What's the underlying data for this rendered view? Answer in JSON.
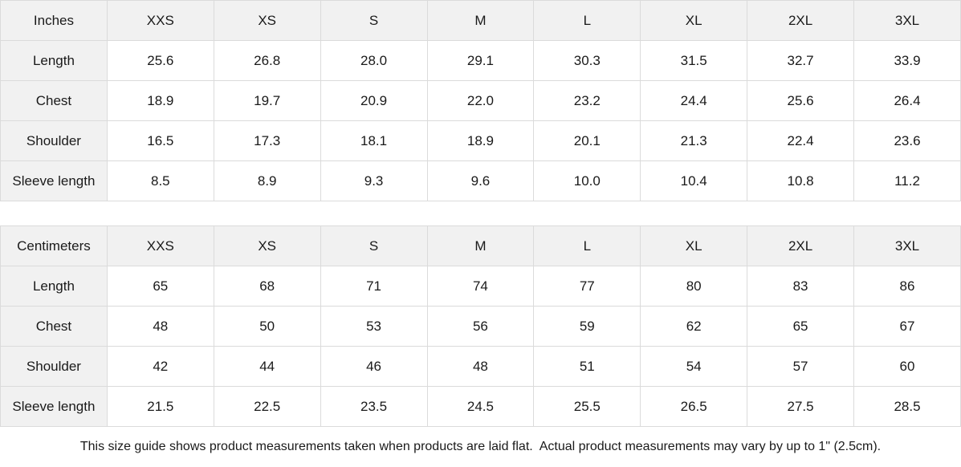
{
  "inches_table": {
    "unit_label": "Inches",
    "sizes": [
      "XXS",
      "XS",
      "S",
      "M",
      "L",
      "XL",
      "2XL",
      "3XL"
    ],
    "rows": [
      {
        "label": "Length",
        "values": [
          "25.6",
          "26.8",
          "28.0",
          "29.1",
          "30.3",
          "31.5",
          "32.7",
          "33.9"
        ]
      },
      {
        "label": "Chest",
        "values": [
          "18.9",
          "19.7",
          "20.9",
          "22.0",
          "23.2",
          "24.4",
          "25.6",
          "26.4"
        ]
      },
      {
        "label": "Shoulder",
        "values": [
          "16.5",
          "17.3",
          "18.1",
          "18.9",
          "20.1",
          "21.3",
          "22.4",
          "23.6"
        ]
      },
      {
        "label": "Sleeve length",
        "values": [
          "8.5",
          "8.9",
          "9.3",
          "9.6",
          "10.0",
          "10.4",
          "10.8",
          "11.2"
        ]
      }
    ]
  },
  "centimeters_table": {
    "unit_label": "Centimeters",
    "sizes": [
      "XXS",
      "XS",
      "S",
      "M",
      "L",
      "XL",
      "2XL",
      "3XL"
    ],
    "rows": [
      {
        "label": "Length",
        "values": [
          "65",
          "68",
          "71",
          "74",
          "77",
          "80",
          "83",
          "86"
        ]
      },
      {
        "label": "Chest",
        "values": [
          "48",
          "50",
          "53",
          "56",
          "59",
          "62",
          "65",
          "67"
        ]
      },
      {
        "label": "Shoulder",
        "values": [
          "42",
          "44",
          "46",
          "48",
          "51",
          "54",
          "57",
          "60"
        ]
      },
      {
        "label": "Sleeve length",
        "values": [
          "21.5",
          "22.5",
          "23.5",
          "24.5",
          "25.5",
          "26.5",
          "27.5",
          "28.5"
        ]
      }
    ]
  },
  "footer": {
    "note": "This size guide shows product measurements taken when products are laid flat.  Actual product measurements may vary by up to 1\" (2.5cm)."
  },
  "colors": {
    "header_background": "#f1f1f1",
    "cell_background": "#ffffff",
    "border": "#dbdbdb",
    "text": "#1a1a1a"
  }
}
